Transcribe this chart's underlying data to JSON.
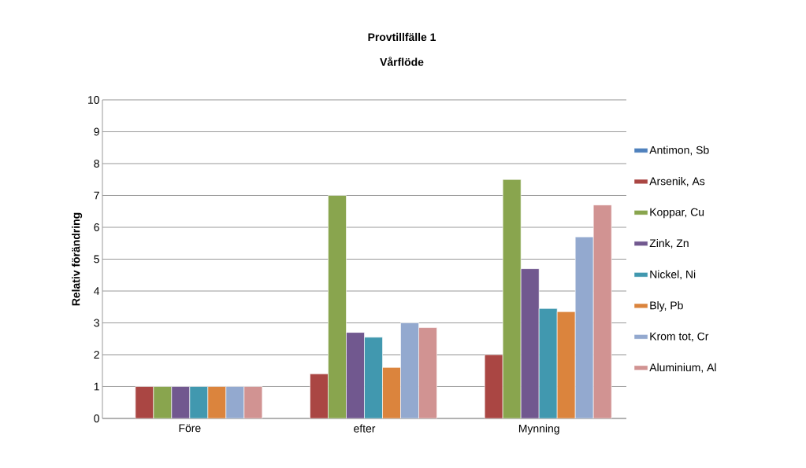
{
  "chart_data": {
    "type": "bar",
    "title": "Provtillfälle 1",
    "subtitle": "Vårflöde",
    "ylabel": "Relativ förändring",
    "categories": [
      "Före",
      "efter",
      "Mynning"
    ],
    "series": [
      {
        "name": "Antimon, Sb",
        "color": "#4f81bd",
        "values": [
          null,
          null,
          null
        ]
      },
      {
        "name": "Arsenik, As",
        "color": "#aa4643",
        "values": [
          1,
          1.4,
          2.0
        ]
      },
      {
        "name": "Koppar, Cu",
        "color": "#89a54e",
        "values": [
          1,
          7.0,
          7.5
        ]
      },
      {
        "name": "Zink, Zn",
        "color": "#71588f",
        "values": [
          1,
          2.7,
          4.7
        ]
      },
      {
        "name": "Nickel, Ni",
        "color": "#4198af",
        "values": [
          1,
          2.55,
          3.45
        ]
      },
      {
        "name": "Bly, Pb",
        "color": "#db843d",
        "values": [
          1,
          1.6,
          3.35
        ]
      },
      {
        "name": "Krom tot, Cr",
        "color": "#93a9cf",
        "values": [
          1,
          3.0,
          5.7
        ]
      },
      {
        "name": "Aluminium, Al",
        "color": "#d19392",
        "values": [
          1,
          2.85,
          6.7
        ]
      }
    ],
    "ylim": [
      0,
      10
    ],
    "yticks": [
      0,
      1,
      2,
      3,
      4,
      5,
      6,
      7,
      8,
      9,
      10
    ],
    "grid": "y",
    "legend": "right"
  }
}
